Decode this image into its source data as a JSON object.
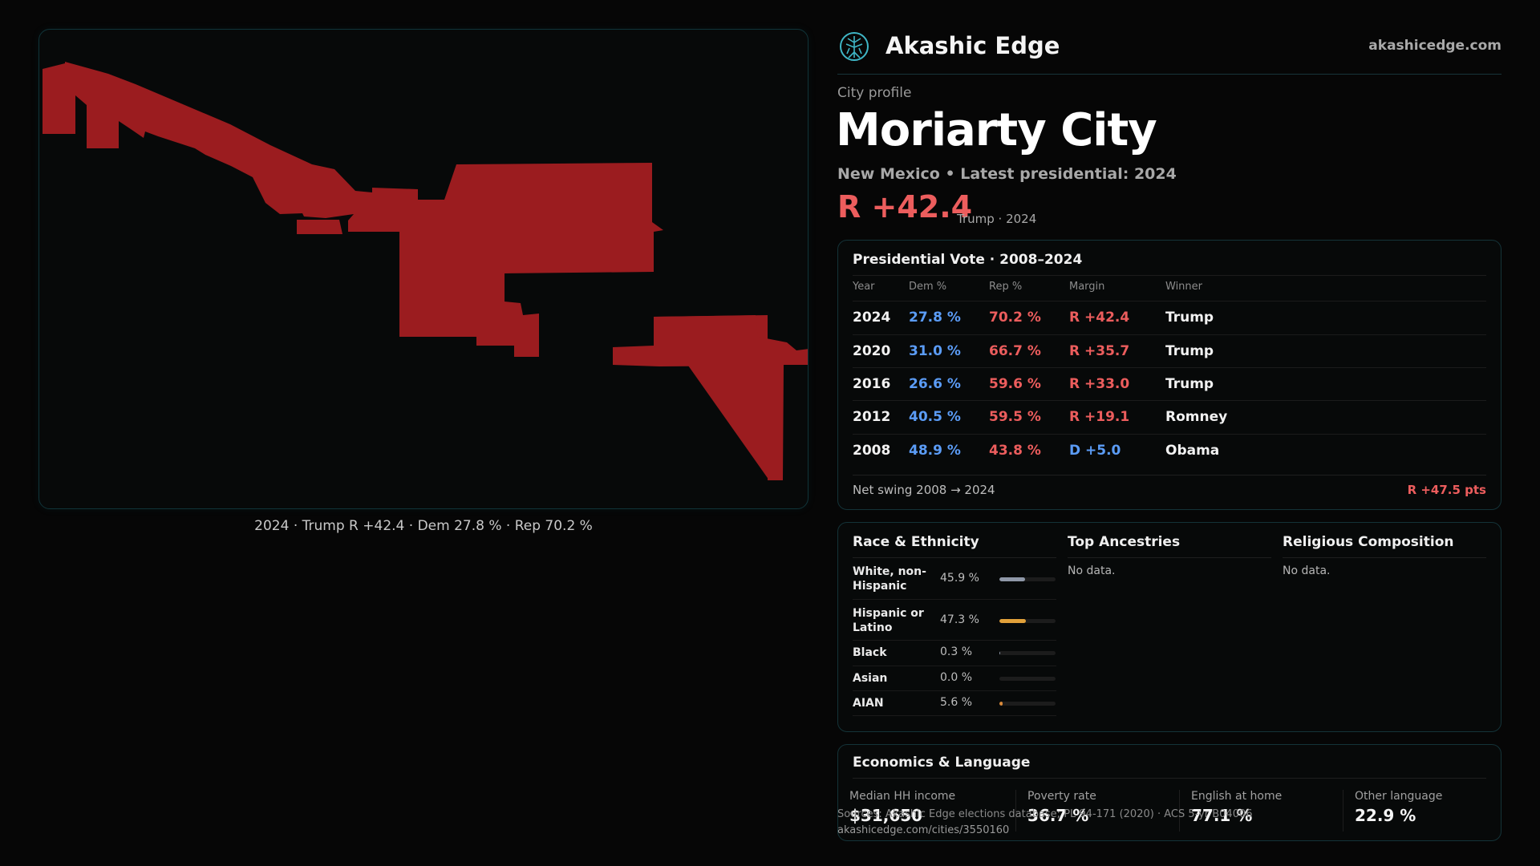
{
  "brand": {
    "name": "Akashic Edge",
    "url": "akashicedge.com",
    "icon": "tree-of-life-icon",
    "accent": "#3fb6c6"
  },
  "profile": {
    "kicker": "City profile",
    "city": "Moriarty City",
    "subtitle": "New Mexico • Latest presidential: 2024",
    "headline_margin": "R +42.4",
    "headline_note": "Trump · 2024"
  },
  "map": {
    "caption": "2024 · Trump R +42.4 · Dem 27.8 % · Rep 70.2 %",
    "fill_color": "#9b1c1f"
  },
  "presidential": {
    "title": "Presidential Vote · 2008–2024",
    "headers": {
      "year": "Year",
      "dem": "Dem %",
      "rep": "Rep %",
      "margin": "Margin",
      "winner": "Winner"
    },
    "rows": [
      {
        "year": "2024",
        "dem": "27.8 %",
        "rep": "70.2 %",
        "margin": "R +42.4",
        "party": "R",
        "winner": "Trump"
      },
      {
        "year": "2020",
        "dem": "31.0 %",
        "rep": "66.7 %",
        "margin": "R +35.7",
        "party": "R",
        "winner": "Trump"
      },
      {
        "year": "2016",
        "dem": "26.6 %",
        "rep": "59.6 %",
        "margin": "R +33.0",
        "party": "R",
        "winner": "Trump"
      },
      {
        "year": "2012",
        "dem": "40.5 %",
        "rep": "59.5 %",
        "margin": "R +19.1",
        "party": "R",
        "winner": "Romney"
      },
      {
        "year": "2008",
        "dem": "48.9 %",
        "rep": "43.8 %",
        "margin": "D +5.0",
        "party": "D",
        "winner": "Obama"
      }
    ],
    "swing_label": "Net swing 2008 → 2024",
    "swing_value": "R +47.5 pts",
    "colors": {
      "dem": "#5b9cf6",
      "rep": "#ec5d5d"
    }
  },
  "demographics": {
    "race_title": "Race & Ethnicity",
    "race": [
      {
        "name": "White, non-Hispanic",
        "pct": "45.9 %",
        "share": 0.459,
        "color": "#8f98a8"
      },
      {
        "name": "Hispanic or Latino",
        "pct": "47.3 %",
        "share": 0.473,
        "color": "#e2a13a"
      },
      {
        "name": "Black",
        "pct": "0.3 %",
        "share": 0.003,
        "color": "#8f98a8"
      },
      {
        "name": "Asian",
        "pct": "0.0 %",
        "share": 0.0,
        "color": "#8f98a8"
      },
      {
        "name": "AIAN",
        "pct": "5.6 %",
        "share": 0.056,
        "color": "#d98a3a"
      }
    ],
    "ancestry_title": "Top Ancestries",
    "ancestry_text": "No data.",
    "religion_title": "Religious Composition",
    "religion_text": "No data."
  },
  "economics": {
    "title": "Economics & Language",
    "items": [
      {
        "label": "Median HH income",
        "value": "$31,650"
      },
      {
        "label": "Poverty rate",
        "value": "36.7 %"
      },
      {
        "label": "English at home",
        "value": "77.1 %"
      },
      {
        "label": "Other language",
        "value": "22.9 %"
      }
    ]
  },
  "source": {
    "line1": "Sources: Akashic Edge elections database; PL 94-171 (2020) · ACS 5-yr B04006",
    "line2": "akashicedge.com/cities/3550160"
  }
}
